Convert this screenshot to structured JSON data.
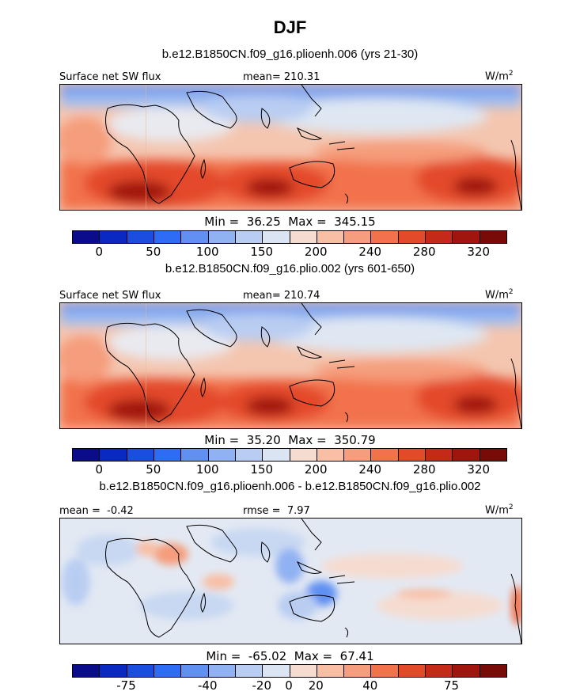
{
  "title": "DJF",
  "palettes": {
    "absolute": [
      "#0a0c8c",
      "#0a29c2",
      "#1a4de0",
      "#2e6cf5",
      "#5f90f2",
      "#90b1f2",
      "#b9cdf2",
      "#dbe4f2",
      "#f5dcd0",
      "#f8bfa5",
      "#f59d7c",
      "#f2724b",
      "#e34a2a",
      "#c42a17",
      "#a0150e",
      "#780a08"
    ],
    "difference": [
      "#0a0c8c",
      "#0a29c2",
      "#1a4de0",
      "#2e6cf5",
      "#5f90f2",
      "#90b1f2",
      "#b9cdf2",
      "#dbe4f2",
      "#f5dcd0",
      "#f8bfa5",
      "#f59d7c",
      "#f2724b",
      "#e34a2a",
      "#c42a17",
      "#a0150e",
      "#780a08"
    ]
  },
  "panels": [
    {
      "subtitle": "b.e12.B1850CN.f09_g16.plioenh.006 (yrs 21-30)",
      "field_label": "Surface net SW flux",
      "stat_label": "mean=",
      "stat_value": "210.31",
      "units_base": "W/m",
      "units_exp": "2",
      "min_label": "Min =",
      "min_value": "36.25",
      "max_label": "Max =",
      "max_value": "345.15",
      "ticks": [
        "0",
        "50",
        "100",
        "150",
        "200",
        "240",
        "280",
        "320"
      ],
      "palette": "absolute"
    },
    {
      "subtitle": "b.e12.B1850CN.f09_g16.plio.002 (yrs 601-650)",
      "field_label": "Surface net SW flux",
      "stat_label": "mean=",
      "stat_value": "210.74",
      "units_base": "W/m",
      "units_exp": "2",
      "min_label": "Min =",
      "min_value": "35.20",
      "max_label": "Max =",
      "max_value": "350.79",
      "ticks": [
        "0",
        "50",
        "100",
        "150",
        "200",
        "240",
        "280",
        "320"
      ],
      "palette": "absolute"
    },
    {
      "subtitle": "b.e12.B1850CN.f09_g16.plioenh.006 - b.e12.B1850CN.f09_g16.plio.002",
      "field_label": "mean =",
      "stat_label": "rmse =",
      "stat_value": "7.97",
      "left_value": "-0.42",
      "units_base": "W/m",
      "units_exp": "2",
      "min_label": "Min =",
      "min_value": "-65.02",
      "max_label": "Max =",
      "max_value": "67.41",
      "ticks": [
        "-75",
        "-40",
        "-20",
        "0",
        "20",
        "40",
        "75"
      ],
      "palette": "difference"
    }
  ]
}
